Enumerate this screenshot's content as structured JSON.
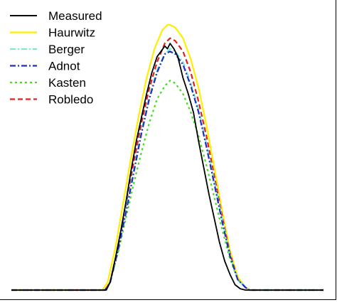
{
  "chart_data": {
    "type": "line",
    "title": "",
    "xlabel": "",
    "ylabel": "",
    "xlim": [
      0,
      24
    ],
    "ylim": [
      0,
      1
    ],
    "grid": false,
    "legend_position": "top-left",
    "series": [
      {
        "name": "Measured",
        "color": "#000000",
        "dash": "solid",
        "x": [
          0,
          7.3,
          7.6,
          8.0,
          8.4,
          8.8,
          9.2,
          9.6,
          10.0,
          10.4,
          10.8,
          11.2,
          11.5,
          11.8,
          12.0,
          12.2,
          12.5,
          12.8,
          13.2,
          13.6,
          14.0,
          14.4,
          14.8,
          15.2,
          15.6,
          16.0,
          16.4,
          16.8,
          17.2,
          17.6,
          18.0,
          18.3,
          24
        ],
        "y": [
          0,
          0,
          0.03,
          0.12,
          0.22,
          0.33,
          0.45,
          0.56,
          0.65,
          0.74,
          0.82,
          0.88,
          0.9,
          0.92,
          0.91,
          0.93,
          0.91,
          0.88,
          0.8,
          0.74,
          0.67,
          0.56,
          0.46,
          0.36,
          0.27,
          0.18,
          0.11,
          0.06,
          0.02,
          0.005,
          0,
          0,
          0
        ]
      },
      {
        "name": "Haurwitz",
        "color": "#ffee00",
        "dash": "solid",
        "x": [
          0,
          7.0,
          7.4,
          8.0,
          8.6,
          9.2,
          9.8,
          10.4,
          11.0,
          11.6,
          12.0,
          12.2,
          12.6,
          13.2,
          13.8,
          14.4,
          15.0,
          15.6,
          16.2,
          16.8,
          17.4,
          18.0,
          18.4,
          24
        ],
        "y": [
          0,
          0,
          0.03,
          0.16,
          0.33,
          0.5,
          0.66,
          0.8,
          0.91,
          0.98,
          1.0,
          1.0,
          0.99,
          0.95,
          0.87,
          0.76,
          0.62,
          0.46,
          0.3,
          0.15,
          0.05,
          0.01,
          0,
          0
        ]
      },
      {
        "name": "Berger",
        "color": "#7ee8cf",
        "dash": "dashdot",
        "x": [
          0,
          7.2,
          7.6,
          8.2,
          8.8,
          9.4,
          10.0,
          10.6,
          11.2,
          11.8,
          12.2,
          12.6,
          13.2,
          13.8,
          14.4,
          15.0,
          15.6,
          16.2,
          16.8,
          17.4,
          18.0,
          18.3,
          24
        ],
        "y": [
          0,
          0,
          0.03,
          0.15,
          0.3,
          0.45,
          0.6,
          0.73,
          0.83,
          0.89,
          0.91,
          0.9,
          0.86,
          0.78,
          0.68,
          0.55,
          0.41,
          0.27,
          0.13,
          0.04,
          0.01,
          0,
          0
        ]
      },
      {
        "name": "Adnot",
        "color": "#1f2fbf",
        "dash": "dashdot",
        "x": [
          0,
          7.2,
          7.6,
          8.2,
          8.8,
          9.4,
          10.0,
          10.6,
          11.2,
          11.8,
          12.2,
          12.6,
          13.2,
          13.8,
          14.4,
          15.0,
          15.6,
          16.2,
          16.8,
          17.4,
          18.0,
          18.3,
          24
        ],
        "y": [
          0,
          0,
          0.03,
          0.15,
          0.29,
          0.44,
          0.59,
          0.72,
          0.82,
          0.89,
          0.9,
          0.89,
          0.85,
          0.77,
          0.67,
          0.54,
          0.4,
          0.26,
          0.13,
          0.04,
          0.01,
          0,
          0
        ]
      },
      {
        "name": "Kasten",
        "color": "#44dd22",
        "dash": "dotted",
        "x": [
          0,
          7.2,
          7.6,
          8.2,
          8.8,
          9.4,
          10.0,
          10.6,
          11.2,
          11.8,
          12.2,
          12.6,
          13.2,
          13.8,
          14.4,
          15.0,
          15.6,
          16.2,
          16.8,
          17.4,
          18.0,
          18.3,
          24
        ],
        "y": [
          0,
          0,
          0.03,
          0.14,
          0.27,
          0.4,
          0.52,
          0.63,
          0.72,
          0.77,
          0.79,
          0.78,
          0.74,
          0.67,
          0.58,
          0.47,
          0.35,
          0.23,
          0.12,
          0.04,
          0.01,
          0,
          0
        ]
      },
      {
        "name": "Robledo",
        "color": "#e02020",
        "dash": "dashed",
        "x": [
          0,
          7.2,
          7.6,
          8.2,
          8.8,
          9.4,
          10.0,
          10.6,
          11.2,
          11.8,
          12.2,
          12.6,
          13.2,
          13.8,
          14.4,
          15.0,
          15.6,
          16.2,
          16.8,
          17.4,
          18.0,
          18.3,
          24
        ],
        "y": [
          0,
          0,
          0.03,
          0.16,
          0.32,
          0.48,
          0.63,
          0.76,
          0.86,
          0.93,
          0.95,
          0.94,
          0.9,
          0.82,
          0.71,
          0.58,
          0.43,
          0.28,
          0.14,
          0.04,
          0.01,
          0,
          0
        ]
      }
    ]
  }
}
